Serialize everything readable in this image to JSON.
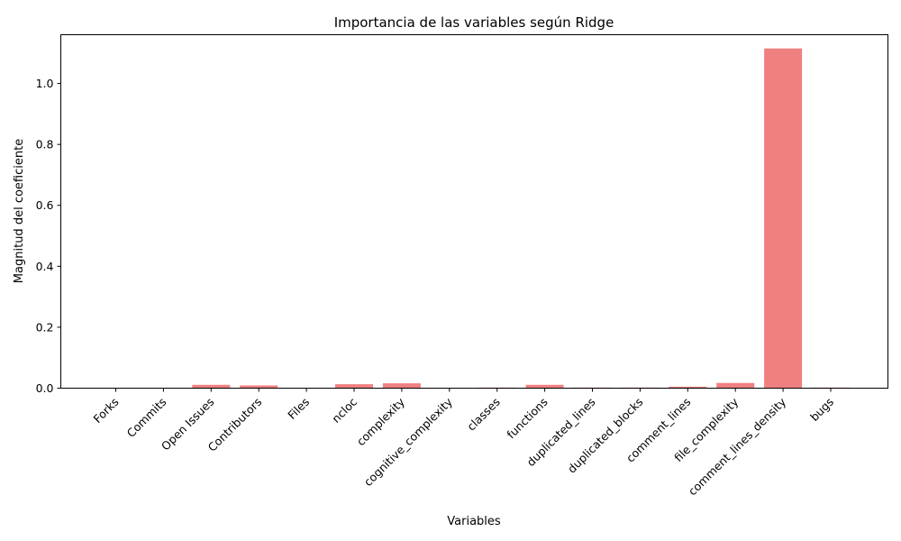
{
  "chart_data": {
    "type": "bar",
    "title": "Importancia de las variables según Ridge",
    "xlabel": "Variables",
    "ylabel": "Magnitud del coeficiente",
    "categories": [
      "Forks",
      "Commits",
      "Open Issues",
      "Contributors",
      "Files",
      "ncloc",
      "complexity",
      "cognitive_complexity",
      "classes",
      "functions",
      "duplicated_lines",
      "duplicated_blocks",
      "comment_lines",
      "file_complexity",
      "comment_lines_density",
      "bugs"
    ],
    "values": [
      0.001,
      0.001,
      0.011,
      0.009,
      0.001,
      0.013,
      0.016,
      0.001,
      0.002,
      0.011,
      0.002,
      0.002,
      0.005,
      0.017,
      1.115,
      0.002
    ],
    "ylim": [
      0,
      1.16
    ],
    "yticks": [
      "0.0",
      "0.2",
      "0.4",
      "0.6",
      "0.8",
      "1.0"
    ],
    "bar_color": "#f08080",
    "grid": false
  }
}
